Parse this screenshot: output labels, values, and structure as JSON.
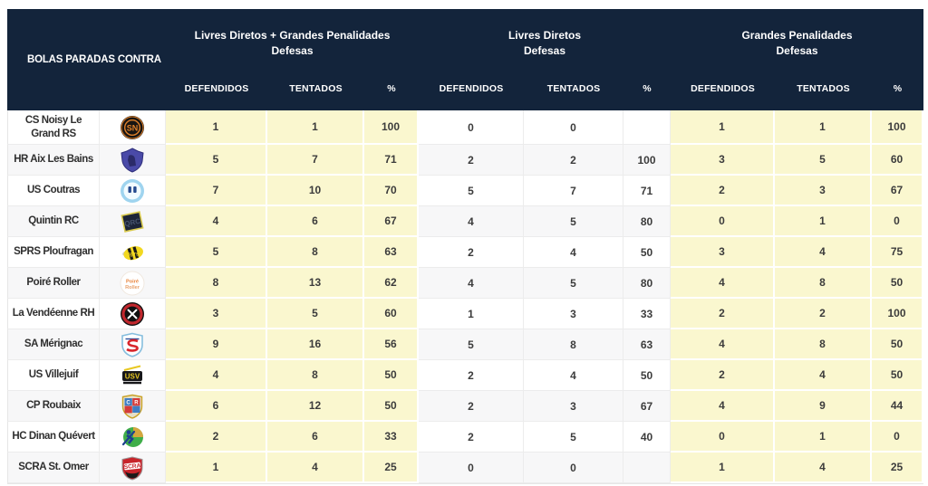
{
  "colors": {
    "header_bg": "#13243B",
    "highlight_cell_bg": "#FAF7CF",
    "alt_row_bg": "#F7F7F8",
    "body_text": "#3C3C3C"
  },
  "header": {
    "title": "BOLAS PARADAS CONTRA",
    "cols": [
      "DEFENDIDOS",
      "TENTADOS",
      "%"
    ]
  },
  "groups": [
    {
      "line1": "Livres Diretos + Grandes Penalidades",
      "line2": "Defesas"
    },
    {
      "line1": "Livres Diretos",
      "line2": "Defesas"
    },
    {
      "line1": "Grandes Penalidades",
      "line2": "Defesas"
    }
  ],
  "teams": [
    {
      "name": "CS Noisy Le Grand RS",
      "logo": "noisy-le-grand",
      "ld_gp": {
        "def": 1,
        "ten": 1,
        "pct": "100"
      },
      "ld": {
        "def": 0,
        "ten": 0,
        "pct": ""
      },
      "gp": {
        "def": 1,
        "ten": 1,
        "pct": "100"
      }
    },
    {
      "name": "HR Aix Les Bains",
      "logo": "aix-les-bains",
      "ld_gp": {
        "def": 5,
        "ten": 7,
        "pct": "71"
      },
      "ld": {
        "def": 2,
        "ten": 2,
        "pct": "100"
      },
      "gp": {
        "def": 3,
        "ten": 5,
        "pct": "60"
      }
    },
    {
      "name": "US Coutras",
      "logo": "coutras",
      "ld_gp": {
        "def": 7,
        "ten": 10,
        "pct": "70"
      },
      "ld": {
        "def": 5,
        "ten": 7,
        "pct": "71"
      },
      "gp": {
        "def": 2,
        "ten": 3,
        "pct": "67"
      }
    },
    {
      "name": "Quintin RC",
      "logo": "quintin",
      "ld_gp": {
        "def": 4,
        "ten": 6,
        "pct": "67"
      },
      "ld": {
        "def": 4,
        "ten": 5,
        "pct": "80"
      },
      "gp": {
        "def": 0,
        "ten": 1,
        "pct": "0"
      }
    },
    {
      "name": "SPRS Ploufragan",
      "logo": "ploufragan",
      "ld_gp": {
        "def": 5,
        "ten": 8,
        "pct": "63"
      },
      "ld": {
        "def": 2,
        "ten": 4,
        "pct": "50"
      },
      "gp": {
        "def": 3,
        "ten": 4,
        "pct": "75"
      }
    },
    {
      "name": "Poiré Roller",
      "logo": "poire-roller",
      "ld_gp": {
        "def": 8,
        "ten": 13,
        "pct": "62"
      },
      "ld": {
        "def": 4,
        "ten": 5,
        "pct": "80"
      },
      "gp": {
        "def": 4,
        "ten": 8,
        "pct": "50"
      }
    },
    {
      "name": "La Vendéenne RH",
      "logo": "vendeenne",
      "ld_gp": {
        "def": 3,
        "ten": 5,
        "pct": "60"
      },
      "ld": {
        "def": 1,
        "ten": 3,
        "pct": "33"
      },
      "gp": {
        "def": 2,
        "ten": 2,
        "pct": "100"
      }
    },
    {
      "name": "SA Mérignac",
      "logo": "merignac",
      "ld_gp": {
        "def": 9,
        "ten": 16,
        "pct": "56"
      },
      "ld": {
        "def": 5,
        "ten": 8,
        "pct": "63"
      },
      "gp": {
        "def": 4,
        "ten": 8,
        "pct": "50"
      }
    },
    {
      "name": "US Villejuif",
      "logo": "villejuif",
      "ld_gp": {
        "def": 4,
        "ten": 8,
        "pct": "50"
      },
      "ld": {
        "def": 2,
        "ten": 4,
        "pct": "50"
      },
      "gp": {
        "def": 2,
        "ten": 4,
        "pct": "50"
      }
    },
    {
      "name": "CP Roubaix",
      "logo": "roubaix",
      "ld_gp": {
        "def": 6,
        "ten": 12,
        "pct": "50"
      },
      "ld": {
        "def": 2,
        "ten": 3,
        "pct": "67"
      },
      "gp": {
        "def": 4,
        "ten": 9,
        "pct": "44"
      }
    },
    {
      "name": "HC Dinan Quévert",
      "logo": "dinan-quevert",
      "ld_gp": {
        "def": 2,
        "ten": 6,
        "pct": "33"
      },
      "ld": {
        "def": 2,
        "ten": 5,
        "pct": "40"
      },
      "gp": {
        "def": 0,
        "ten": 1,
        "pct": "0"
      }
    },
    {
      "name": "SCRA St. Omer",
      "logo": "scra",
      "ld_gp": {
        "def": 1,
        "ten": 4,
        "pct": "25"
      },
      "ld": {
        "def": 0,
        "ten": 0,
        "pct": ""
      },
      "gp": {
        "def": 1,
        "ten": 4,
        "pct": "25"
      }
    }
  ]
}
